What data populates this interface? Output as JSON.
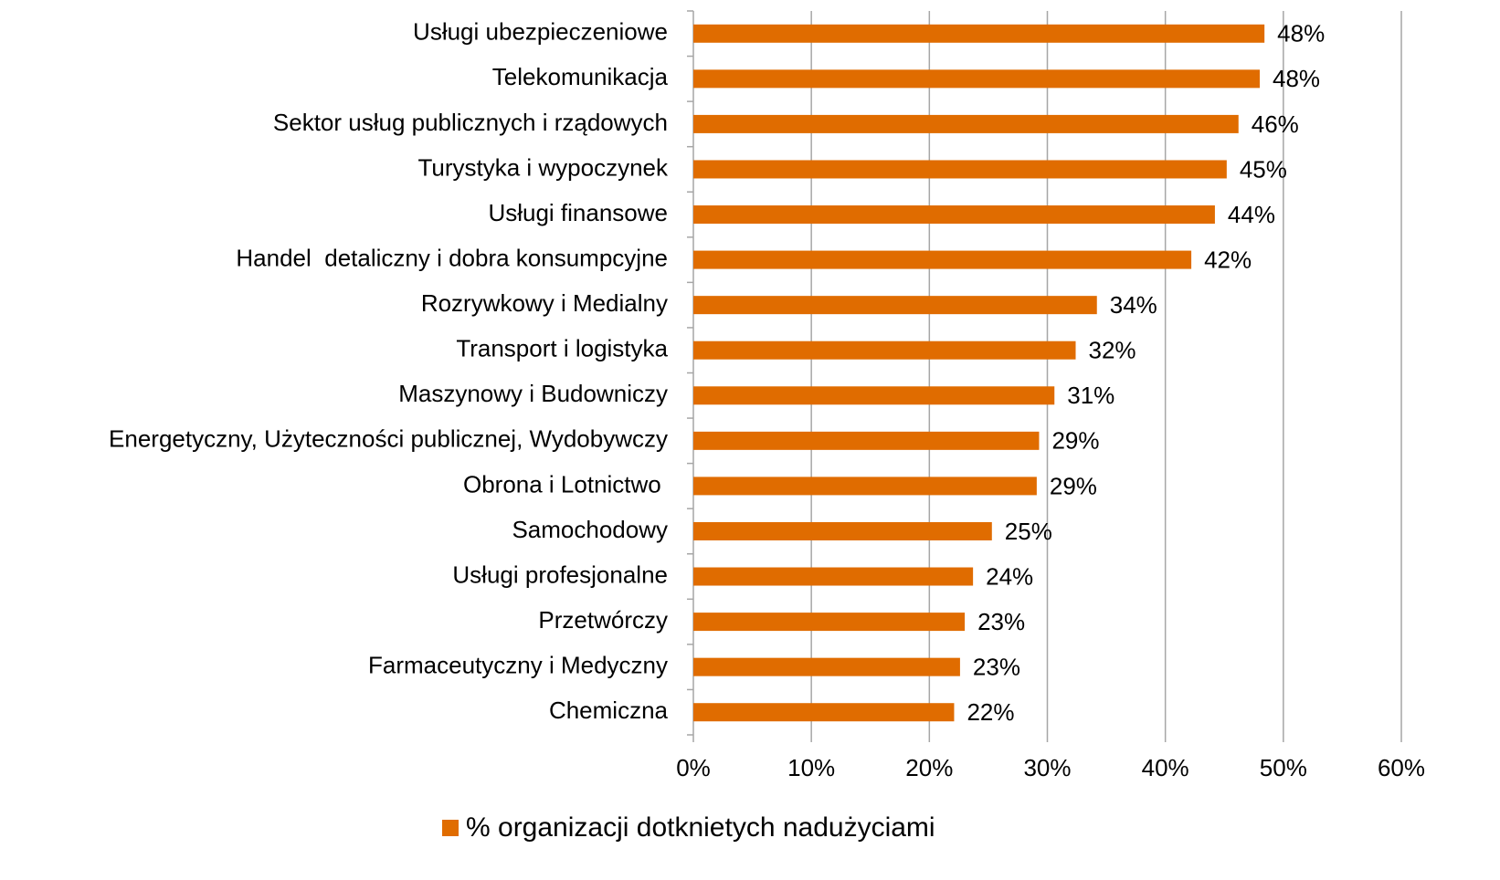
{
  "chart_data": {
    "type": "barh",
    "categories": [
      "Usługi ubezpieczeniowe",
      "Telekomunikacja",
      "Sektor usług publicznych i rządowych",
      "Turystyka i wypoczynek",
      "Usługi finansowe",
      "Handel  detaliczny i dobra konsumpcyjne",
      "Rozrywkowy i Medialny",
      "Transport i logistyka",
      "Maszynowy i Budowniczy",
      "Energetyczny, Użyteczności publicznej, Wydobywczy",
      "Obrona i Lotnictwo ",
      "Samochodowy",
      "Usługi profesjonalne",
      "Przetwórczy",
      "Farmaceutyczny i Medyczny",
      "Chemiczna"
    ],
    "series": [
      {
        "name": "% organizacji dotknietych nadużyciami",
        "color": "#e06c00",
        "values": [
          48.4,
          48.0,
          46.2,
          45.2,
          44.2,
          42.2,
          34.2,
          32.4,
          30.6,
          29.3,
          29.1,
          25.3,
          23.7,
          23.0,
          22.6,
          22.1
        ],
        "value_labels": [
          "48%",
          "48%",
          "46%",
          "45%",
          "44%",
          "42%",
          "34%",
          "32%",
          "31%",
          "29%",
          "29%",
          "25%",
          "24%",
          "23%",
          "23%",
          "22%"
        ]
      }
    ],
    "xlim": [
      0,
      60
    ],
    "xticks": [
      {
        "value": 0,
        "label": "0%"
      },
      {
        "value": 10,
        "label": "10%"
      },
      {
        "value": 20,
        "label": "20%"
      },
      {
        "value": 30,
        "label": "30%"
      },
      {
        "value": 40,
        "label": "40%"
      },
      {
        "value": 50,
        "label": "50%"
      },
      {
        "value": 60,
        "label": "60%"
      }
    ],
    "grid": true,
    "legend": "bottom"
  }
}
